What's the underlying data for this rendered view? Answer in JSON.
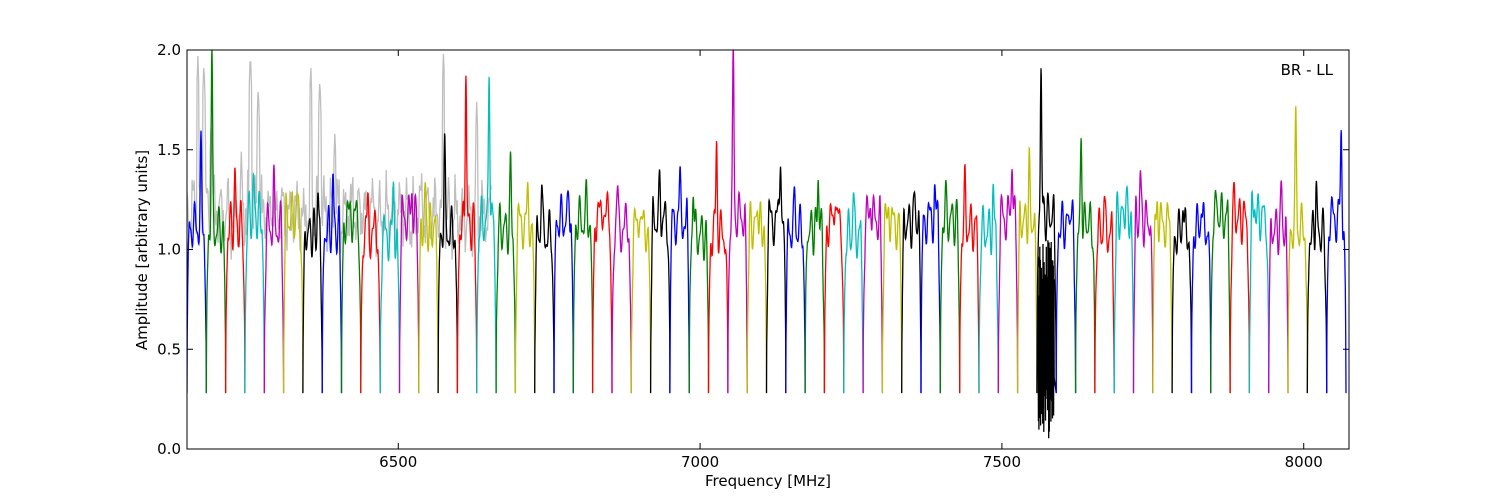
{
  "chart_data": {
    "type": "line",
    "title": "",
    "xlabel": "Frequency [MHz]",
    "ylabel": "Amplitude [arbitrary units]",
    "annotation": "BR - LL",
    "legend": "none",
    "grid": false,
    "xlim": [
      6150,
      8075
    ],
    "ylim": [
      0,
      2.0
    ],
    "xticks": [
      6500,
      7000,
      7500,
      8000
    ],
    "xtick_labels": [
      "6500",
      "7000",
      "7500",
      "8000"
    ],
    "yticks": [
      0.0,
      0.5,
      1.0,
      1.5,
      2.0
    ],
    "ytick_labels": [
      "0.0",
      "0.5",
      "1.0",
      "1.5",
      "2.0"
    ],
    "band_width_mhz": 32,
    "band_palette": [
      "#0000ff",
      "#007f00",
      "#ff0000",
      "#00bfbf",
      "#bf00bf",
      "#bfbf00",
      "#000000"
    ],
    "background_series": {
      "color": "#bfbfbf",
      "x_range": [
        6150,
        6655
      ],
      "description_points": [
        [
          6168,
          1.97
        ],
        [
          6178,
          1.95
        ],
        [
          6190,
          1.65
        ],
        [
          6240,
          1.49
        ],
        [
          6255,
          2.0
        ],
        [
          6268,
          1.83
        ],
        [
          6355,
          1.93
        ],
        [
          6370,
          1.87
        ],
        [
          6395,
          1.6
        ],
        [
          6575,
          2.0
        ],
        [
          6630,
          1.74
        ]
      ]
    },
    "bands": [
      {
        "start": 6150,
        "peak": 1.52,
        "color": "#0000ff"
      },
      {
        "start": 6182,
        "peak": 2.0,
        "color": "#007f00"
      },
      {
        "start": 6214,
        "peak": 1.4,
        "color": "#ff0000"
      },
      {
        "start": 6246,
        "peak": 1.38,
        "color": "#00bfbf"
      },
      {
        "start": 6278,
        "peak": 1.36,
        "color": "#bf00bf"
      },
      {
        "start": 6310,
        "peak": 1.3,
        "color": "#bfbf00"
      },
      {
        "start": 6342,
        "peak": 1.32,
        "color": "#000000"
      },
      {
        "start": 6374,
        "peak": 1.38,
        "color": "#0000ff"
      },
      {
        "start": 6406,
        "peak": 1.26,
        "color": "#007f00"
      },
      {
        "start": 6438,
        "peak": 1.27,
        "color": "#ff0000"
      },
      {
        "start": 6470,
        "peak": 1.35,
        "color": "#00bfbf"
      },
      {
        "start": 6502,
        "peak": 1.37,
        "color": "#bf00bf"
      },
      {
        "start": 6534,
        "peak": 1.34,
        "color": "#bfbf00"
      },
      {
        "start": 6566,
        "peak": 1.54,
        "color": "#000000"
      },
      {
        "start": 6598,
        "peak": 2.0,
        "color": "#ff0000"
      },
      {
        "start": 6630,
        "peak": 2.0,
        "color": "#00bfbf"
      },
      {
        "start": 6662,
        "peak": 1.46,
        "color": "#007f00"
      },
      {
        "start": 6694,
        "peak": 1.3,
        "color": "#bfbf00"
      },
      {
        "start": 6726,
        "peak": 1.4,
        "color": "#000000"
      },
      {
        "start": 6758,
        "peak": 1.34,
        "color": "#0000ff"
      },
      {
        "start": 6790,
        "peak": 1.3,
        "color": "#007f00"
      },
      {
        "start": 6822,
        "peak": 1.3,
        "color": "#ff0000"
      },
      {
        "start": 6854,
        "peak": 1.32,
        "color": "#bf00bf"
      },
      {
        "start": 6886,
        "peak": 1.29,
        "color": "#bfbf00"
      },
      {
        "start": 6918,
        "peak": 1.38,
        "color": "#000000"
      },
      {
        "start": 6950,
        "peak": 1.37,
        "color": "#0000ff"
      },
      {
        "start": 6982,
        "peak": 1.39,
        "color": "#007f00"
      },
      {
        "start": 7014,
        "peak": 1.61,
        "color": "#ff0000"
      },
      {
        "start": 7046,
        "peak": 2.0,
        "color": "#bf00bf"
      },
      {
        "start": 7078,
        "peak": 1.3,
        "color": "#bfbf00"
      },
      {
        "start": 7110,
        "peak": 1.58,
        "color": "#000000"
      },
      {
        "start": 7142,
        "peak": 1.32,
        "color": "#0000ff"
      },
      {
        "start": 7174,
        "peak": 1.45,
        "color": "#007f00"
      },
      {
        "start": 7206,
        "peak": 1.38,
        "color": "#ff0000"
      },
      {
        "start": 7238,
        "peak": 1.33,
        "color": "#00bfbf"
      },
      {
        "start": 7270,
        "peak": 1.32,
        "color": "#bf00bf"
      },
      {
        "start": 7302,
        "peak": 1.3,
        "color": "#bfbf00"
      },
      {
        "start": 7334,
        "peak": 1.33,
        "color": "#000000"
      },
      {
        "start": 7366,
        "peak": 1.35,
        "color": "#0000ff"
      },
      {
        "start": 7398,
        "peak": 1.31,
        "color": "#007f00"
      },
      {
        "start": 7430,
        "peak": 1.36,
        "color": "#ff0000"
      },
      {
        "start": 7462,
        "peak": 1.33,
        "color": "#00bfbf"
      },
      {
        "start": 7494,
        "peak": 1.56,
        "color": "#bf00bf"
      },
      {
        "start": 7526,
        "peak": 1.46,
        "color": "#bfbf00"
      },
      {
        "start": 7558,
        "peak": 2.0,
        "color": "#000000"
      },
      {
        "start": 7590,
        "peak": 1.31,
        "color": "#0000ff"
      },
      {
        "start": 7622,
        "peak": 1.57,
        "color": "#007f00"
      },
      {
        "start": 7654,
        "peak": 1.32,
        "color": "#ff0000"
      },
      {
        "start": 7686,
        "peak": 1.33,
        "color": "#00bfbf"
      },
      {
        "start": 7718,
        "peak": 1.43,
        "color": "#bf00bf"
      },
      {
        "start": 7750,
        "peak": 1.32,
        "color": "#bfbf00"
      },
      {
        "start": 7782,
        "peak": 1.32,
        "color": "#000000"
      },
      {
        "start": 7814,
        "peak": 1.3,
        "color": "#0000ff"
      },
      {
        "start": 7846,
        "peak": 1.31,
        "color": "#007f00"
      },
      {
        "start": 7878,
        "peak": 1.31,
        "color": "#ff0000"
      },
      {
        "start": 7910,
        "peak": 1.31,
        "color": "#00bfbf"
      },
      {
        "start": 7942,
        "peak": 1.35,
        "color": "#bf00bf"
      },
      {
        "start": 7974,
        "peak": 1.69,
        "color": "#bfbf00"
      },
      {
        "start": 8006,
        "peak": 1.38,
        "color": "#000000"
      },
      {
        "start": 8038,
        "peak": 1.63,
        "color": "#0000ff"
      }
    ]
  }
}
